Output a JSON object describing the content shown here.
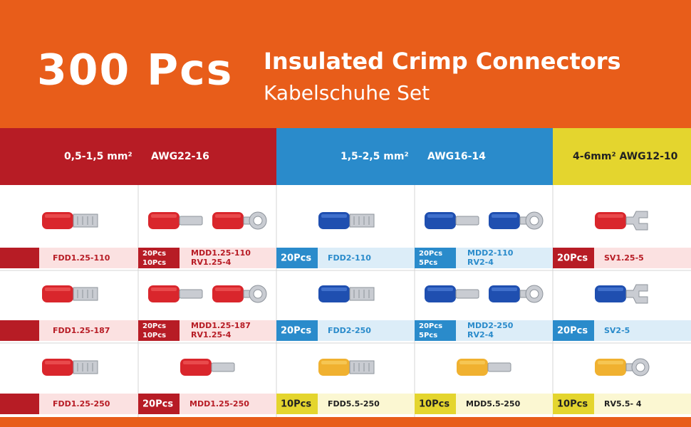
{
  "header": {
    "count": "300 Pcs",
    "title": "Insulated Crimp Connectors",
    "subtitle": "Kabelschuhe Set"
  },
  "groups": [
    {
      "labels": [
        "0,5-1,5 mm²",
        "AWG22-16"
      ],
      "color": "red"
    },
    {
      "labels": [
        "1,5-2,5 mm²",
        "AWG16-14"
      ],
      "color": "blue"
    },
    {
      "labels": [
        "4-6mm² AWG12-10"
      ],
      "color": "yellow"
    }
  ],
  "rows": [
    [
      {
        "color": "red",
        "icons": [
          "female"
        ],
        "items": [
          {
            "name": "FDD1.25-110"
          }
        ]
      },
      {
        "color": "red",
        "icons": [
          "male",
          "ring"
        ],
        "items": [
          {
            "qty": "20Pcs",
            "name": "MDD1.25-110"
          },
          {
            "qty": "10Pcs",
            "name": "RV1.25-4"
          }
        ]
      },
      {
        "color": "blue",
        "icons": [
          "female"
        ],
        "items": [
          {
            "qty": "20Pcs",
            "name": "FDD2-110"
          }
        ]
      },
      {
        "color": "blue",
        "icons": [
          "male",
          "ring"
        ],
        "items": [
          {
            "qty": "20Pcs",
            "name": "MDD2-110"
          },
          {
            "qty": "5Pcs",
            "name": "RV2-4"
          }
        ]
      },
      {
        "color": "red",
        "icons": [
          "fork"
        ],
        "items": [
          {
            "qty": "20Pcs",
            "name": "SV1.25-5"
          }
        ]
      }
    ],
    [
      {
        "color": "red",
        "icons": [
          "female"
        ],
        "items": [
          {
            "name": "FDD1.25-187"
          }
        ]
      },
      {
        "color": "red",
        "icons": [
          "male",
          "ring"
        ],
        "items": [
          {
            "qty": "20Pcs",
            "name": "MDD1.25-187"
          },
          {
            "qty": "10Pcs",
            "name": "RV1.25-4"
          }
        ]
      },
      {
        "color": "blue",
        "icons": [
          "female"
        ],
        "items": [
          {
            "qty": "20Pcs",
            "name": "FDD2-250"
          }
        ]
      },
      {
        "color": "blue",
        "icons": [
          "male",
          "ring"
        ],
        "items": [
          {
            "qty": "20Pcs",
            "name": "MDD2-250"
          },
          {
            "qty": "5Pcs",
            "name": "RV2-4"
          }
        ]
      },
      {
        "color": "blue",
        "icons": [
          "fork"
        ],
        "items": [
          {
            "qty": "20Pcs",
            "name": "SV2-5"
          }
        ]
      }
    ],
    [
      {
        "color": "red",
        "icons": [
          "female"
        ],
        "items": [
          {
            "name": "FDD1.25-250"
          }
        ]
      },
      {
        "color": "red",
        "icons": [
          "male"
        ],
        "items": [
          {
            "qty": "20Pcs",
            "name": "MDD1.25-250"
          }
        ]
      },
      {
        "color": "yellow",
        "icons": [
          "female"
        ],
        "items": [
          {
            "qty": "10Pcs",
            "name": "FDD5.5-250"
          }
        ]
      },
      {
        "color": "yellow",
        "icons": [
          "male"
        ],
        "items": [
          {
            "qty": "10Pcs",
            "name": "MDD5.5-250"
          }
        ]
      },
      {
        "color": "yellow",
        "icons": [
          "ring"
        ],
        "items": [
          {
            "qty": "10Pcs",
            "name": "RV5.5- 4"
          }
        ]
      }
    ]
  ]
}
